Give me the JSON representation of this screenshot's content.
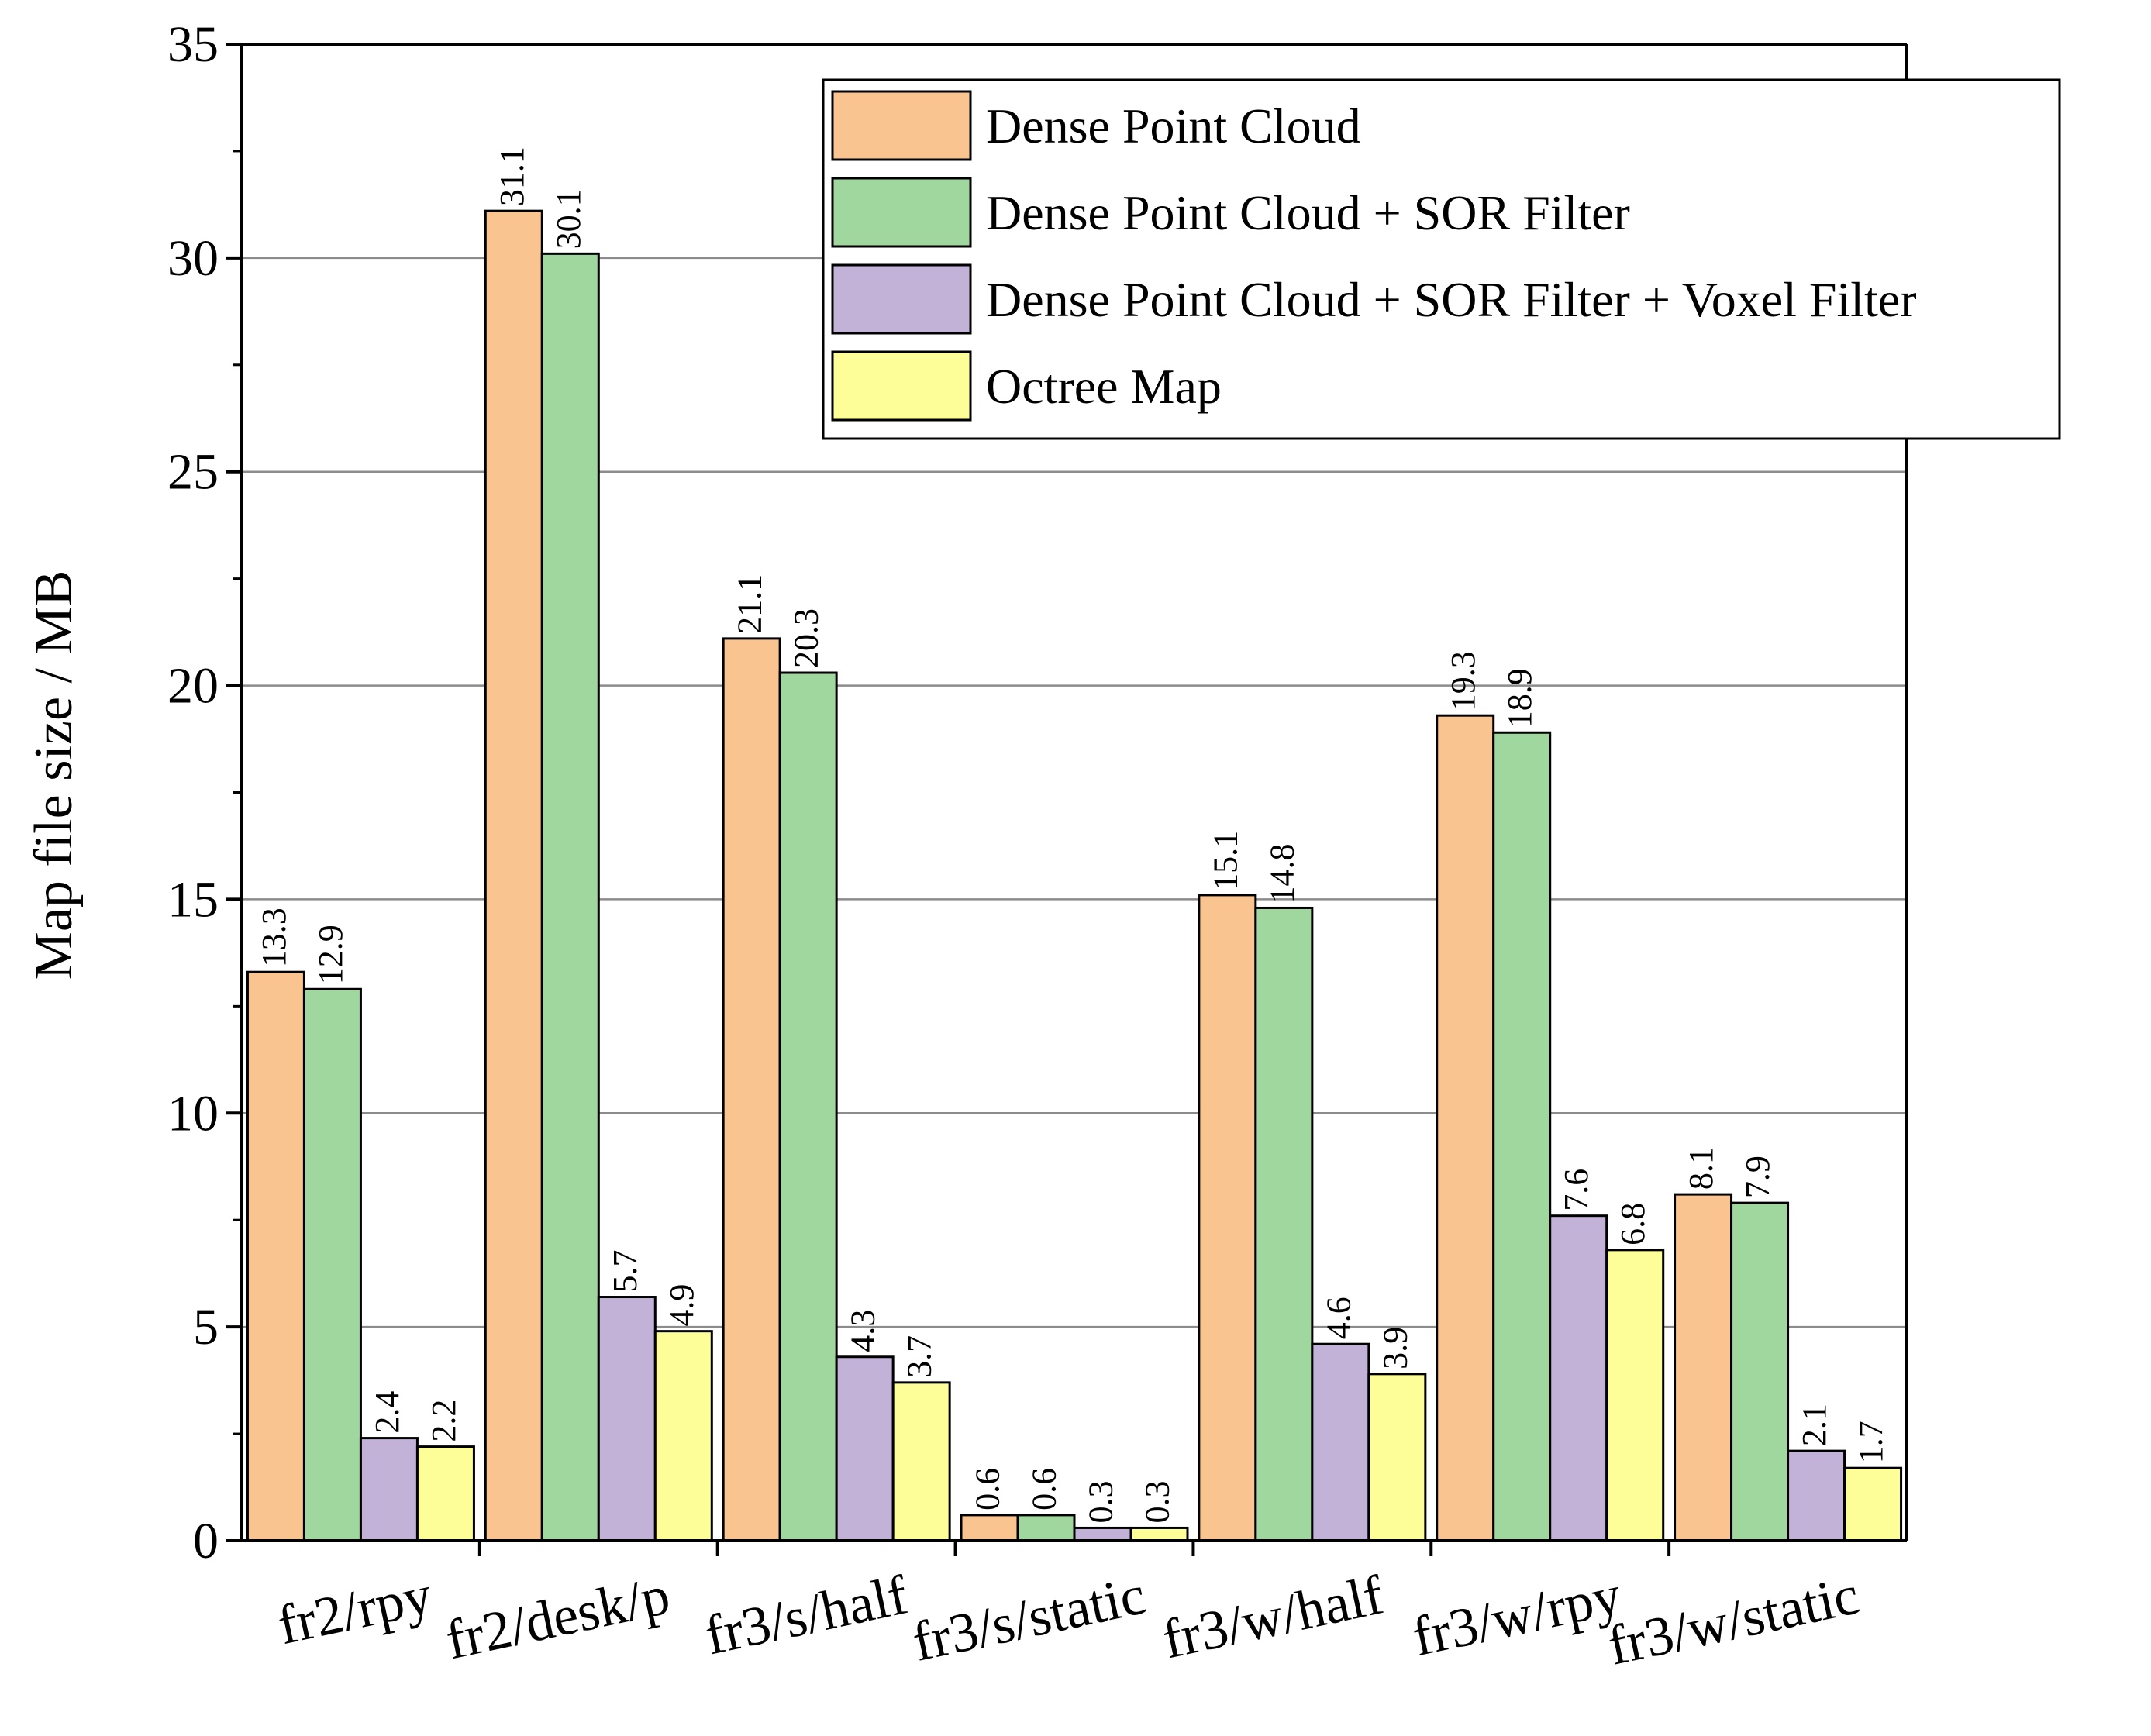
{
  "chart_data": {
    "type": "bar",
    "title": "",
    "xlabel": "",
    "ylabel": "Map file size / MB",
    "ylim": [
      0,
      35
    ],
    "yticks": [
      0,
      5,
      10,
      15,
      20,
      25,
      30,
      35
    ],
    "grid": true,
    "legend_position": "top-right",
    "categories": [
      "fr2/rpy",
      "fr2/desk/p",
      "fr3/s/half",
      "fr3/s/static",
      "fr3/w/half",
      "fr3/w/rpy",
      "fr3/w/static"
    ],
    "series": [
      {
        "name": "Dense Point Cloud",
        "color": "#f9c490",
        "values": [
          13.3,
          31.1,
          21.1,
          0.6,
          15.1,
          19.3,
          8.1
        ]
      },
      {
        "name": "Dense Point Cloud + SOR Filter",
        "color": "#9fd79f",
        "values": [
          12.9,
          30.1,
          20.3,
          0.6,
          14.8,
          18.9,
          7.9
        ]
      },
      {
        "name": "Dense Point Cloud + SOR Filter + Voxel Filter",
        "color": "#c2b2d8",
        "values": [
          2.4,
          5.7,
          4.3,
          0.3,
          4.6,
          7.6,
          2.1
        ]
      },
      {
        "name": "Octree Map",
        "color": "#fefe98",
        "values": [
          2.2,
          4.9,
          3.7,
          0.3,
          3.9,
          6.8,
          1.7
        ]
      }
    ]
  }
}
